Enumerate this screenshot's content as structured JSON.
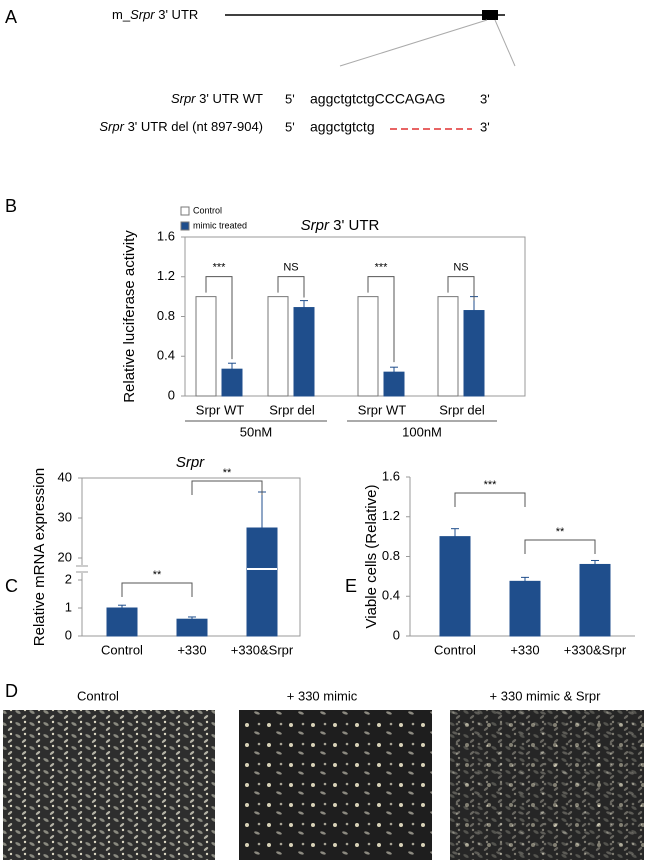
{
  "panel_a": {
    "label": "A",
    "gene_prefix": "m_",
    "gene": "Srpr",
    "gene_suffix": " 3' UTR",
    "rows": [
      {
        "gene": "Srpr",
        "name": " 3' UTR WT",
        "five": "5'",
        "sequence": "aggctgtctgCCCAGAG",
        "three": "3'"
      },
      {
        "gene": "Srpr",
        "name": " 3' UTR del (nt 897-904)",
        "five": "5'",
        "sequence": "aggctgtctg",
        "three": "3'"
      }
    ]
  },
  "chart_data": [
    {
      "type": "bar",
      "label": "B",
      "title_gene": "Srpr",
      "title": " 3' UTR",
      "ylabel": "Relative luciferase activity",
      "categories": [
        "Srpr WT",
        "Srpr del",
        "Srpr WT",
        "Srpr del"
      ],
      "group_labels": [
        "50nM",
        "100nM"
      ],
      "series": [
        {
          "name": "Control",
          "color": "#ffffff",
          "values": [
            1,
            1,
            1,
            1
          ]
        },
        {
          "name": "mimic treated",
          "color": "#1f4e8c",
          "values": [
            0.27,
            0.89,
            0.24,
            0.86
          ],
          "errors": [
            0.06,
            0.07,
            0.05,
            0.14
          ]
        }
      ],
      "annotations": [
        "***",
        "NS",
        "***",
        "NS"
      ],
      "ylim": [
        0,
        1.6
      ],
      "yticks": [
        0,
        0.4,
        0.8,
        1.2,
        1.6
      ],
      "legend": "top-left"
    },
    {
      "type": "bar",
      "label": "C",
      "title": "Srpr",
      "ylabel": "Relative mRNA expression",
      "categories": [
        "Control",
        "+330",
        "+330&Srpr"
      ],
      "color": "#1f4e8c",
      "values": [
        1.0,
        0.6,
        27.5
      ],
      "errors": [
        0.1,
        0.08,
        9
      ],
      "annotations": [
        "**",
        "**"
      ],
      "ylim": [
        0,
        40
      ],
      "axis_break": [
        2,
        20
      ],
      "yticks": [
        0,
        1,
        2,
        20,
        30,
        40
      ]
    },
    {
      "type": "bar",
      "label": "E",
      "ylabel": "Viable cells (Relative)",
      "categories": [
        "Control",
        "+330",
        "+330&Srpr"
      ],
      "color": "#1f4e8c",
      "values": [
        1.0,
        0.55,
        0.72
      ],
      "errors": [
        0.08,
        0.04,
        0.04
      ],
      "annotations": [
        "***",
        "**"
      ],
      "ylim": [
        0,
        1.6
      ],
      "yticks": [
        0,
        0.4,
        0.8,
        1.2,
        1.6
      ]
    }
  ],
  "panel_d": {
    "label": "D",
    "captions": [
      "Control",
      "+ 330 mimic",
      "+ 330 mimic & Srpr"
    ]
  }
}
